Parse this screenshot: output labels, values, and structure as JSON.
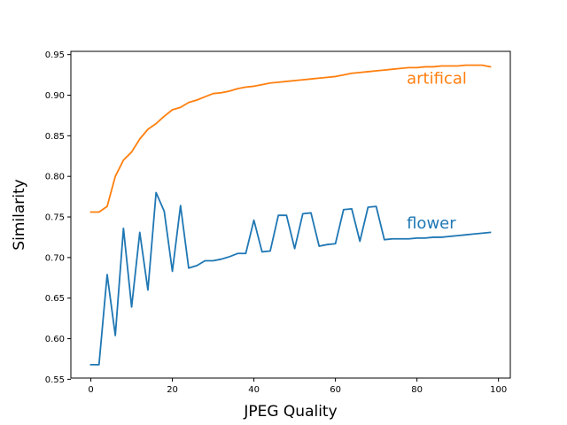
{
  "chart_data": {
    "type": "line",
    "xlabel": "JPEG Quality",
    "ylabel": "Similarity",
    "xlim": [
      -4.9,
      102.9
    ],
    "ylim": [
      0.5515,
      0.954
    ],
    "x_ticks": [
      0,
      20,
      40,
      60,
      80,
      100
    ],
    "x_tick_labels": [
      "0",
      "20",
      "40",
      "60",
      "80",
      "100"
    ],
    "y_ticks": [
      0.55,
      0.6,
      0.65,
      0.7,
      0.75,
      0.8,
      0.85,
      0.9,
      0.95
    ],
    "y_tick_labels": [
      "0.55",
      "0.60",
      "0.65",
      "0.70",
      "0.75",
      "0.80",
      "0.85",
      "0.90",
      "0.95"
    ],
    "grid": false,
    "legend": "none",
    "x": [
      0,
      2,
      4,
      6,
      8,
      10,
      12,
      14,
      16,
      18,
      20,
      22,
      24,
      26,
      28,
      30,
      32,
      34,
      36,
      38,
      40,
      42,
      44,
      46,
      48,
      50,
      52,
      54,
      56,
      58,
      60,
      62,
      64,
      66,
      68,
      70,
      72,
      74,
      76,
      78,
      80,
      82,
      84,
      86,
      88,
      90,
      92,
      94,
      96,
      98
    ],
    "series": [
      {
        "name": "artifical",
        "color": "#ff7f0e",
        "label_pos": [
          77.5,
          0.914
        ],
        "values": [
          0.756,
          0.756,
          0.763,
          0.8,
          0.82,
          0.83,
          0.846,
          0.858,
          0.865,
          0.874,
          0.882,
          0.885,
          0.891,
          0.894,
          0.898,
          0.902,
          0.903,
          0.905,
          0.908,
          0.91,
          0.911,
          0.913,
          0.915,
          0.916,
          0.917,
          0.918,
          0.919,
          0.92,
          0.921,
          0.922,
          0.923,
          0.925,
          0.927,
          0.928,
          0.929,
          0.93,
          0.931,
          0.932,
          0.933,
          0.934,
          0.934,
          0.935,
          0.935,
          0.936,
          0.936,
          0.936,
          0.937,
          0.937,
          0.937,
          0.935
        ]
      },
      {
        "name": "flower",
        "color": "#1f77b4",
        "label_pos": [
          77.5,
          0.736
        ],
        "values": [
          0.568,
          0.568,
          0.679,
          0.604,
          0.736,
          0.639,
          0.731,
          0.66,
          0.78,
          0.757,
          0.683,
          0.764,
          0.687,
          0.69,
          0.696,
          0.696,
          0.698,
          0.701,
          0.705,
          0.705,
          0.746,
          0.707,
          0.708,
          0.752,
          0.752,
          0.711,
          0.754,
          0.755,
          0.714,
          0.716,
          0.717,
          0.759,
          0.76,
          0.72,
          0.762,
          0.763,
          0.722,
          0.723,
          0.723,
          0.723,
          0.724,
          0.724,
          0.725,
          0.725,
          0.726,
          0.727,
          0.728,
          0.729,
          0.73,
          0.731
        ]
      }
    ]
  }
}
